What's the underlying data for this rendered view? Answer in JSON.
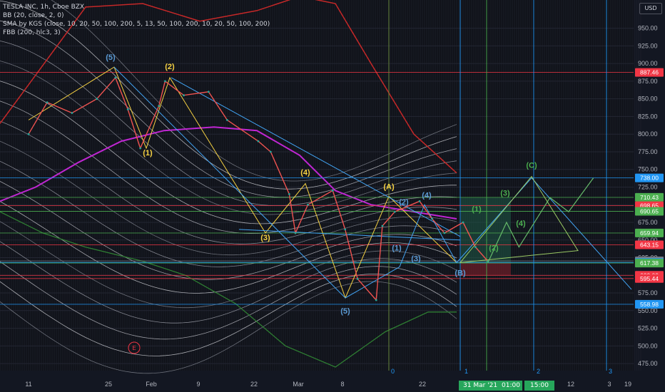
{
  "legend": {
    "title": "TESLA INC, 1h, Cboe BZX",
    "bb": "BB (20, close, 2, 0)",
    "sma": "SMA by KGS (close, 10, 20, 50, 100, 200, 5, 13, 50, 100, 200, 10, 20, 50, 100, 200)",
    "fbb": "FBB (200, hlc3, 3)"
  },
  "currency": "USD",
  "event_marker": "E",
  "bottom_highlight": [
    "31 Mar '21",
    "01:00",
    "15:00"
  ],
  "chart_data": {
    "type": "line",
    "title": "TESLA INC, 1h, Cboe BZX",
    "ylim": [
      465,
      990
    ],
    "y_ticks": [
      475,
      500,
      525,
      550,
      575,
      600,
      625,
      650,
      675,
      700,
      725,
      750,
      775,
      800,
      825,
      850,
      875,
      900,
      925,
      950
    ],
    "x_ticks": [
      "11",
      "25",
      "Feb",
      "9",
      "22",
      "Mar",
      "8",
      "22",
      "1",
      "2",
      "12",
      "3",
      "19"
    ],
    "vertical_labels": [
      "0",
      "1",
      "2",
      "3"
    ],
    "price_levels": [
      {
        "value": 887.46,
        "color": "#f23645"
      },
      {
        "value": 738.0,
        "color": "#2196f3"
      },
      {
        "value": 710.43,
        "color": "#4caf50"
      },
      {
        "value": 698.65,
        "color": "#f23645"
      },
      {
        "value": 690.65,
        "color": "#4caf50"
      },
      {
        "value": 659.94,
        "color": "#4caf50"
      },
      {
        "value": 643.15,
        "color": "#f23645"
      },
      {
        "value": 620.44,
        "color": "#787b86"
      },
      {
        "value": 618.27,
        "color": "#2196f3"
      },
      {
        "value": 618.0,
        "color": "#2196f3"
      },
      {
        "value": 617.38,
        "color": "#4caf50"
      },
      {
        "value": 600.0,
        "color": "#f23645"
      },
      {
        "value": 595.44,
        "color": "#f23645"
      },
      {
        "value": 558.98,
        "color": "#2196f3"
      }
    ],
    "wave_labels": [
      {
        "text": "(5)",
        "color": "#5b9bd5"
      },
      {
        "text": "(2)",
        "color": "#f5d142"
      },
      {
        "text": "(1)",
        "color": "#f5d142"
      },
      {
        "text": "(4)",
        "color": "#f5d142"
      },
      {
        "text": "(3)",
        "color": "#f5d142"
      },
      {
        "text": "(5)",
        "color": "#5b9bd5"
      },
      {
        "text": "(A)",
        "color": "#f5d142"
      },
      {
        "text": "(2)",
        "color": "#5b9bd5"
      },
      {
        "text": "(4)",
        "color": "#5b9bd5"
      },
      {
        "text": "(1)",
        "color": "#5b9bd5"
      },
      {
        "text": "(3)",
        "color": "#5b9bd5"
      },
      {
        "text": "(B)",
        "color": "#5b9bd5"
      },
      {
        "text": "(1)",
        "color": "#4caf50"
      },
      {
        "text": "(2)",
        "color": "#4caf50"
      },
      {
        "text": "(3)",
        "color": "#4caf50"
      },
      {
        "text": "(4)",
        "color": "#4caf50"
      },
      {
        "text": "(C)",
        "color": "#4caf50"
      }
    ],
    "price_series": [
      {
        "x": "Jan 11",
        "y": 800
      },
      {
        "x": "Jan 14",
        "y": 845
      },
      {
        "x": "Jan 18",
        "y": 830
      },
      {
        "x": "Jan 22",
        "y": 850
      },
      {
        "x": "Jan 25",
        "y": 880
      },
      {
        "x": "Jan 27",
        "y": 835
      },
      {
        "x": "Jan 29",
        "y": 780
      },
      {
        "x": "Feb 1",
        "y": 840
      },
      {
        "x": "Feb 2",
        "y": 875
      },
      {
        "x": "Feb 5",
        "y": 855
      },
      {
        "x": "Feb 9",
        "y": 860
      },
      {
        "x": "Feb 12",
        "y": 820
      },
      {
        "x": "Feb 17",
        "y": 790
      },
      {
        "x": "Feb 19",
        "y": 775
      },
      {
        "x": "Feb 22",
        "y": 715
      },
      {
        "x": "Feb 23",
        "y": 660
      },
      {
        "x": "Feb 25",
        "y": 700
      },
      {
        "x": "Mar 1",
        "y": 720
      },
      {
        "x": "Mar 3",
        "y": 665
      },
      {
        "x": "Mar 5",
        "y": 595
      },
      {
        "x": "Mar 8",
        "y": 565
      },
      {
        "x": "Mar 9",
        "y": 670
      },
      {
        "x": "Mar 11",
        "y": 690
      },
      {
        "x": "Mar 15",
        "y": 705
      },
      {
        "x": "Mar 17",
        "y": 680
      },
      {
        "x": "Mar 19",
        "y": 660
      },
      {
        "x": "Mar 22",
        "y": 675
      },
      {
        "x": "Mar 24",
        "y": 640
      },
      {
        "x": "Mar 26",
        "y": 620
      }
    ],
    "projection": [
      {
        "x": "Mar 26",
        "y": 618
      },
      {
        "x": "Mar 29",
        "y": 675
      },
      {
        "x": "Mar 31",
        "y": 640
      },
      {
        "x": "Apr 5",
        "y": 710
      },
      {
        "x": "Apr 8",
        "y": 690
      },
      {
        "x": "Apr 12",
        "y": 738
      }
    ],
    "grid": true,
    "legend_position": "top-left"
  }
}
